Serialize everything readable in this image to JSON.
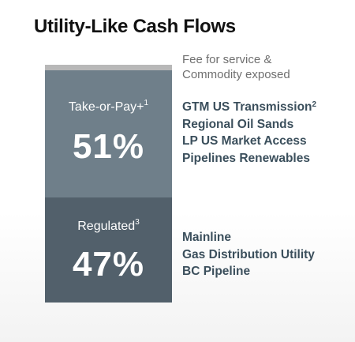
{
  "title": "Utility-Like Cash Flows",
  "fee_note": {
    "line1": "Fee for service &",
    "line2": "Commodity exposed"
  },
  "blocks": {
    "take_or_pay": {
      "label": "Take-or-Pay+",
      "footnote": "1",
      "percent": "51%",
      "color": "#6f7f8a"
    },
    "regulated": {
      "label": "Regulated",
      "footnote": "3",
      "percent": "47%",
      "color": "#52606b"
    }
  },
  "take_or_pay_items": [
    {
      "text": "GTM US Transmission",
      "footnote": "2"
    },
    {
      "text": "Regional Oil Sands",
      "footnote": ""
    },
    {
      "text": "LP US Market Access",
      "footnote": ""
    },
    {
      "text": "Pipelines Renewables",
      "footnote": ""
    }
  ],
  "regulated_items": [
    {
      "text": "Mainline"
    },
    {
      "text": "Gas Distribution Utility"
    },
    {
      "text": "BC Pipeline"
    }
  ],
  "colors": {
    "list_text": "#3b4f5c",
    "top_bar": "#b8b8b8"
  }
}
